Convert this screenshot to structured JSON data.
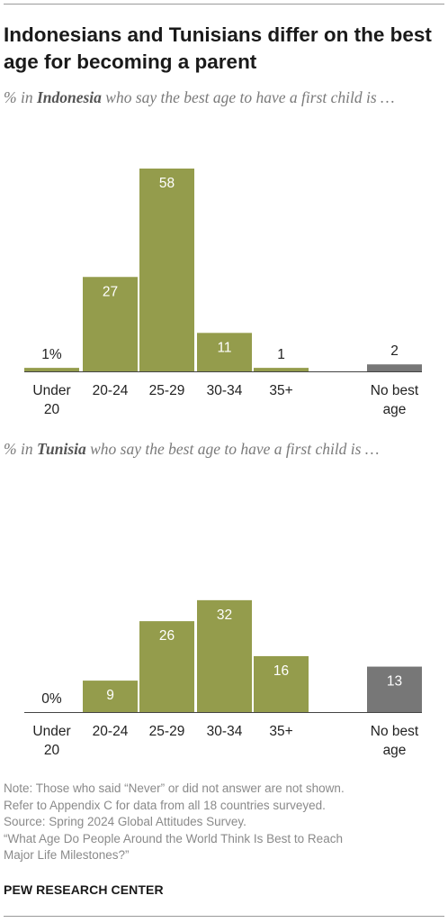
{
  "title": "Indonesians and Tunisians differ on the best age for becoming a parent",
  "charts": [
    {
      "subtitle_prefix": "% in ",
      "subtitle_country": "Indonesia",
      "subtitle_suffix": " who say the best age to have a first child is …"
    },
    {
      "subtitle_prefix": "% in ",
      "subtitle_country": "Tunisia",
      "subtitle_suffix": " who say the best age to have a first child is …"
    }
  ],
  "chart_data": [
    {
      "type": "bar",
      "title": "% in Indonesia who say the best age to have a first child is …",
      "categories": [
        [
          "Under",
          "20"
        ],
        [
          "20-24"
        ],
        [
          "25-29"
        ],
        [
          "30-34"
        ],
        [
          "35+"
        ],
        [
          "No best",
          "age"
        ]
      ],
      "values": [
        1,
        27,
        58,
        11,
        1,
        2
      ],
      "labels": [
        "1%",
        "27",
        "58",
        "11",
        "1",
        "2"
      ],
      "ylim": [
        0,
        58
      ],
      "grid": false,
      "colors": [
        "#949c4c",
        "#949c4c",
        "#949c4c",
        "#949c4c",
        "#949c4c",
        "#777777"
      ]
    },
    {
      "type": "bar",
      "title": "% in Tunisia who say the best age to have a first child is …",
      "categories": [
        [
          "Under",
          "20"
        ],
        [
          "20-24"
        ],
        [
          "25-29"
        ],
        [
          "30-34"
        ],
        [
          "35+"
        ],
        [
          "No best",
          "age"
        ]
      ],
      "values": [
        0,
        9,
        26,
        32,
        16,
        13
      ],
      "labels": [
        "0%",
        "9",
        "26",
        "32",
        "16",
        "13"
      ],
      "ylim": [
        0,
        58
      ],
      "grid": false,
      "colors": [
        "#949c4c",
        "#949c4c",
        "#949c4c",
        "#949c4c",
        "#949c4c",
        "#777777"
      ]
    }
  ],
  "notes": [
    "Note: Those who said “Never” or did not answer are not shown.",
    "Refer to Appendix C for data from all 18 countries surveyed.",
    "Source: Spring 2024 Global Attitudes Survey.",
    "“What Age Do People Around the World Think Is Best to Reach",
    "Major Life Milestones?”"
  ],
  "source_org": "PEW RESEARCH CENTER",
  "colors": {
    "bar": "#949c4c",
    "no_answer_bar": "#777777",
    "axis": "#444444"
  }
}
